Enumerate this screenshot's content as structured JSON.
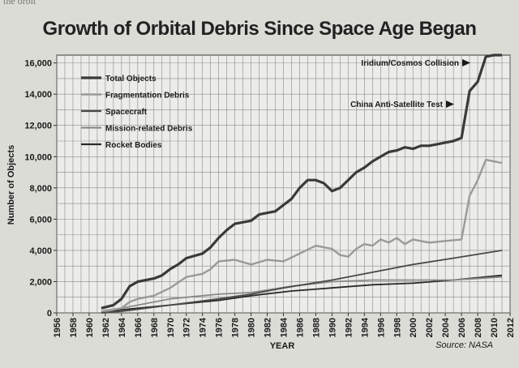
{
  "page": {
    "fragment_text": "the orbit",
    "title": "Growth of Orbital Debris Since Space Age Began",
    "source": "Source: NASA"
  },
  "chart_data": {
    "type": "line",
    "title": "Growth of Orbital Debris Since Space Age Began",
    "xlabel": "YEAR",
    "ylabel": "Number of Objects",
    "xlim": [
      1956,
      2012
    ],
    "ylim": [
      0,
      16500
    ],
    "xticks": [
      1956,
      1958,
      1960,
      1962,
      1964,
      1966,
      1968,
      1970,
      1972,
      1974,
      1976,
      1978,
      1980,
      1982,
      1984,
      1986,
      1988,
      1990,
      1992,
      1994,
      1996,
      1998,
      2000,
      2002,
      2004,
      2006,
      2008,
      2010,
      2012
    ],
    "ytick_labels": [
      "0",
      "2,000",
      "4,000",
      "6,000",
      "8,000",
      "10,000",
      "12,000",
      "14,000",
      "16,000"
    ],
    "yticks": [
      0,
      2000,
      4000,
      6000,
      8000,
      10000,
      12000,
      14000,
      16000
    ],
    "grid": true,
    "legend_position": "top-left",
    "series": [
      {
        "name": "Total Objects",
        "color": "#3a3a3a",
        "width": 3.2,
        "points": [
          [
            1961.5,
            300
          ],
          [
            1963,
            500
          ],
          [
            1964,
            900
          ],
          [
            1965,
            1700
          ],
          [
            1966,
            2000
          ],
          [
            1968,
            2200
          ],
          [
            1969,
            2400
          ],
          [
            1970,
            2800
          ],
          [
            1971,
            3100
          ],
          [
            1972,
            3500
          ],
          [
            1974,
            3800
          ],
          [
            1975,
            4200
          ],
          [
            1976,
            4800
          ],
          [
            1977,
            5300
          ],
          [
            1978,
            5700
          ],
          [
            1980,
            5900
          ],
          [
            1981,
            6300
          ],
          [
            1983,
            6500
          ],
          [
            1984,
            6900
          ],
          [
            1985,
            7300
          ],
          [
            1986,
            8000
          ],
          [
            1987,
            8500
          ],
          [
            1988,
            8500
          ],
          [
            1989,
            8300
          ],
          [
            1990,
            7800
          ],
          [
            1991,
            8000
          ],
          [
            1992,
            8500
          ],
          [
            1993,
            9000
          ],
          [
            1994,
            9300
          ],
          [
            1995,
            9700
          ],
          [
            1996,
            10000
          ],
          [
            1997,
            10300
          ],
          [
            1998,
            10400
          ],
          [
            1999,
            10600
          ],
          [
            2000,
            10500
          ],
          [
            2001,
            10700
          ],
          [
            2002,
            10700
          ],
          [
            2003,
            10800
          ],
          [
            2004,
            10900
          ],
          [
            2005,
            11000
          ],
          [
            2006,
            11200
          ],
          [
            2007,
            14200
          ],
          [
            2008,
            14800
          ],
          [
            2009,
            16400
          ],
          [
            2010,
            16500
          ],
          [
            2011,
            16500
          ]
        ]
      },
      {
        "name": "Fragmentation Debris",
        "color": "#9a9a9a",
        "width": 2.4,
        "points": [
          [
            1961.5,
            100
          ],
          [
            1964,
            300
          ],
          [
            1965,
            700
          ],
          [
            1966,
            900
          ],
          [
            1968,
            1100
          ],
          [
            1970,
            1600
          ],
          [
            1972,
            2300
          ],
          [
            1974,
            2500
          ],
          [
            1975,
            2800
          ],
          [
            1976,
            3300
          ],
          [
            1978,
            3400
          ],
          [
            1980,
            3100
          ],
          [
            1982,
            3400
          ],
          [
            1984,
            3300
          ],
          [
            1986,
            3800
          ],
          [
            1988,
            4300
          ],
          [
            1989,
            4200
          ],
          [
            1990,
            4100
          ],
          [
            1991,
            3700
          ],
          [
            1992,
            3600
          ],
          [
            1993,
            4100
          ],
          [
            1994,
            4400
          ],
          [
            1995,
            4300
          ],
          [
            1996,
            4700
          ],
          [
            1997,
            4500
          ],
          [
            1998,
            4800
          ],
          [
            1999,
            4400
          ],
          [
            2000,
            4700
          ],
          [
            2002,
            4500
          ],
          [
            2004,
            4600
          ],
          [
            2006,
            4700
          ],
          [
            2007,
            7500
          ],
          [
            2008,
            8500
          ],
          [
            2009,
            9800
          ],
          [
            2010,
            9700
          ],
          [
            2011,
            9600
          ]
        ]
      },
      {
        "name": "Spacecraft",
        "color": "#4a4a4a",
        "width": 1.8,
        "points": [
          [
            1961.5,
            0
          ],
          [
            1964,
            100
          ],
          [
            1970,
            500
          ],
          [
            1976,
            900
          ],
          [
            1980,
            1200
          ],
          [
            1984,
            1600
          ],
          [
            1990,
            2100
          ],
          [
            1995,
            2600
          ],
          [
            2000,
            3100
          ],
          [
            2005,
            3500
          ],
          [
            2011,
            4000
          ]
        ]
      },
      {
        "name": "Mission-related Debris",
        "color": "#8a8a8a",
        "width": 1.8,
        "points": [
          [
            1961.5,
            0
          ],
          [
            1964,
            300
          ],
          [
            1970,
            900
          ],
          [
            1976,
            1200
          ],
          [
            1980,
            1300
          ],
          [
            1985,
            1700
          ],
          [
            1990,
            2000
          ],
          [
            1995,
            2100
          ],
          [
            2000,
            2100
          ],
          [
            2005,
            2100
          ],
          [
            2011,
            2300
          ]
        ]
      },
      {
        "name": "Rocket Bodies",
        "color": "#2a2a2a",
        "width": 1.8,
        "points": [
          [
            1961.5,
            0
          ],
          [
            1964,
            200
          ],
          [
            1970,
            500
          ],
          [
            1976,
            800
          ],
          [
            1980,
            1100
          ],
          [
            1985,
            1400
          ],
          [
            1990,
            1600
          ],
          [
            1995,
            1800
          ],
          [
            2000,
            1900
          ],
          [
            2005,
            2100
          ],
          [
            2011,
            2400
          ]
        ]
      }
    ],
    "annotations": [
      {
        "text": "Iridium/Cosmos Collision",
        "x": 2009,
        "y": 16400
      },
      {
        "text": "China Anti-Satellite Test",
        "x": 2007,
        "y": 13000
      }
    ]
  }
}
